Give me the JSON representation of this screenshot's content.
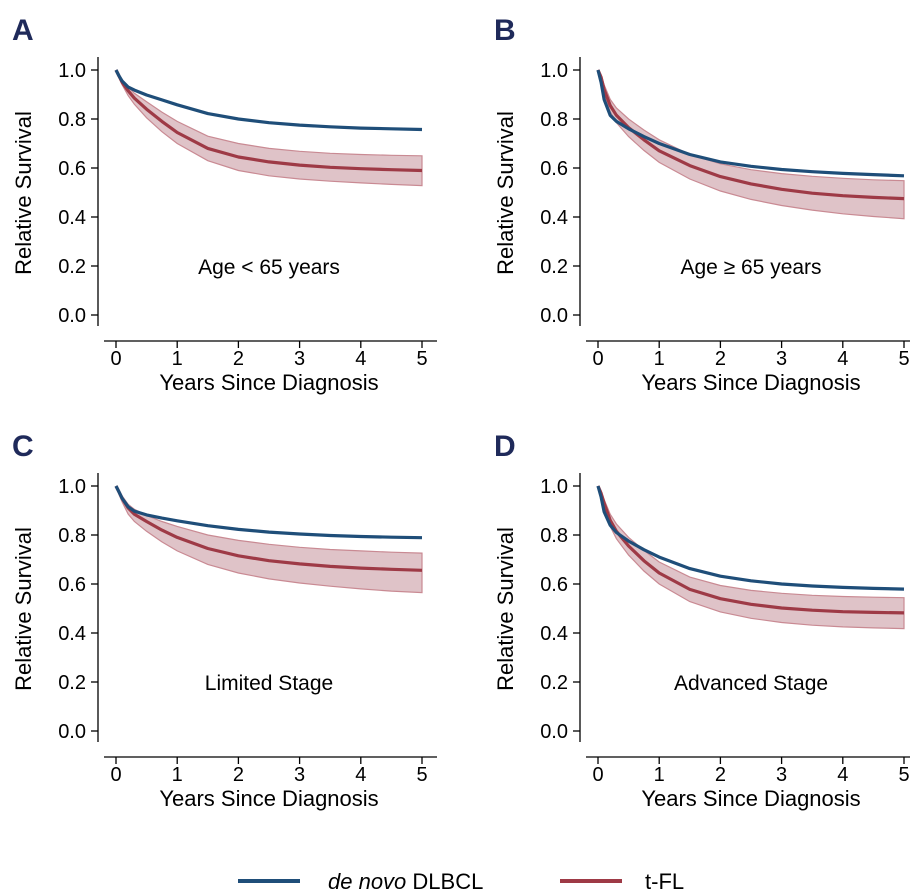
{
  "colors": {
    "denovo": "#1f4e79",
    "tfl": "#9e3a46",
    "band_fill": "#dfc3c8",
    "band_stroke": "#c98a93",
    "panel_label": "#1f2a5a"
  },
  "legend": {
    "denovo_italic": "de novo",
    "denovo_rest": " DLBCL",
    "tfl": "t-FL"
  },
  "chart_data": [
    {
      "type": "line",
      "panel": "A",
      "annotation": "Age < 65 years",
      "xlabel": "Years Since Diagnosis",
      "ylabel": "Relative Survival",
      "xlim": [
        0,
        5
      ],
      "ylim": [
        0,
        1
      ],
      "xticks": [
        "0",
        "1",
        "2",
        "3",
        "4",
        "5"
      ],
      "yticks": [
        "0.0",
        "0.2",
        "0.4",
        "0.6",
        "0.8",
        "1.0"
      ],
      "x": [
        0,
        0.05,
        0.1,
        0.2,
        0.3,
        0.5,
        0.75,
        1,
        1.5,
        2,
        2.5,
        3,
        3.5,
        4,
        4.5,
        5
      ],
      "series": [
        {
          "name": "de novo DLBCL",
          "values": [
            1.0,
            0.975,
            0.955,
            0.93,
            0.918,
            0.898,
            0.878,
            0.858,
            0.822,
            0.8,
            0.785,
            0.775,
            0.768,
            0.763,
            0.76,
            0.757
          ]
        },
        {
          "name": "t-FL",
          "values": [
            1.0,
            0.975,
            0.95,
            0.915,
            0.885,
            0.84,
            0.79,
            0.745,
            0.68,
            0.645,
            0.625,
            0.612,
            0.603,
            0.597,
            0.593,
            0.59
          ],
          "lower": [
            1.0,
            0.97,
            0.94,
            0.895,
            0.86,
            0.805,
            0.748,
            0.7,
            0.63,
            0.59,
            0.568,
            0.555,
            0.546,
            0.539,
            0.533,
            0.528
          ],
          "upper": [
            1.0,
            0.98,
            0.96,
            0.93,
            0.905,
            0.87,
            0.828,
            0.79,
            0.73,
            0.7,
            0.68,
            0.668,
            0.66,
            0.655,
            0.652,
            0.65
          ]
        }
      ]
    },
    {
      "type": "line",
      "panel": "B",
      "annotation": "Age ≥ 65 years",
      "xlabel": "Years Since Diagnosis",
      "ylabel": "Relative Survival",
      "xlim": [
        0,
        5
      ],
      "ylim": [
        0,
        1
      ],
      "xticks": [
        "0",
        "1",
        "2",
        "3",
        "4",
        "5"
      ],
      "yticks": [
        "0.0",
        "0.2",
        "0.4",
        "0.6",
        "0.8",
        "1.0"
      ],
      "x": [
        0,
        0.05,
        0.1,
        0.2,
        0.3,
        0.5,
        0.75,
        1,
        1.5,
        2,
        2.5,
        3,
        3.5,
        4,
        4.5,
        5
      ],
      "series": [
        {
          "name": "de novo DLBCL",
          "values": [
            1.0,
            0.95,
            0.88,
            0.815,
            0.79,
            0.76,
            0.728,
            0.7,
            0.655,
            0.625,
            0.607,
            0.594,
            0.585,
            0.578,
            0.573,
            0.568
          ]
        },
        {
          "name": "t-FL",
          "values": [
            1.0,
            0.97,
            0.92,
            0.855,
            0.815,
            0.765,
            0.715,
            0.67,
            0.61,
            0.565,
            0.535,
            0.513,
            0.497,
            0.487,
            0.48,
            0.475
          ],
          "lower": [
            1.0,
            0.96,
            0.9,
            0.83,
            0.785,
            0.728,
            0.672,
            0.623,
            0.555,
            0.506,
            0.472,
            0.447,
            0.428,
            0.413,
            0.402,
            0.393
          ],
          "upper": [
            1.0,
            0.98,
            0.94,
            0.88,
            0.845,
            0.8,
            0.755,
            0.715,
            0.655,
            0.617,
            0.593,
            0.577,
            0.566,
            0.558,
            0.552,
            0.548
          ]
        }
      ]
    },
    {
      "type": "line",
      "panel": "C",
      "annotation": "Limited Stage",
      "xlabel": "Years Since Diagnosis",
      "ylabel": "Relative Survival",
      "xlim": [
        0,
        5
      ],
      "ylim": [
        0,
        1
      ],
      "xticks": [
        "0",
        "1",
        "2",
        "3",
        "4",
        "5"
      ],
      "yticks": [
        "0.0",
        "0.2",
        "0.4",
        "0.6",
        "0.8",
        "1.0"
      ],
      "x": [
        0,
        0.05,
        0.1,
        0.2,
        0.3,
        0.5,
        0.75,
        1,
        1.5,
        2,
        2.5,
        3,
        3.5,
        4,
        4.5,
        5
      ],
      "series": [
        {
          "name": "de novo DLBCL",
          "values": [
            1.0,
            0.975,
            0.95,
            0.915,
            0.897,
            0.882,
            0.869,
            0.858,
            0.838,
            0.823,
            0.812,
            0.804,
            0.798,
            0.794,
            0.791,
            0.789
          ]
        },
        {
          "name": "t-FL",
          "values": [
            1.0,
            0.975,
            0.95,
            0.91,
            0.885,
            0.855,
            0.82,
            0.79,
            0.745,
            0.715,
            0.695,
            0.682,
            0.672,
            0.665,
            0.66,
            0.656
          ],
          "lower": [
            1.0,
            0.965,
            0.935,
            0.885,
            0.855,
            0.815,
            0.772,
            0.735,
            0.68,
            0.645,
            0.621,
            0.604,
            0.591,
            0.58,
            0.571,
            0.565
          ],
          "upper": [
            1.0,
            0.98,
            0.96,
            0.925,
            0.905,
            0.88,
            0.855,
            0.835,
            0.8,
            0.778,
            0.762,
            0.75,
            0.741,
            0.735,
            0.73,
            0.726
          ]
        }
      ]
    },
    {
      "type": "line",
      "panel": "D",
      "annotation": "Advanced Stage",
      "xlabel": "Years Since Diagnosis",
      "ylabel": "Relative Survival",
      "xlim": [
        0,
        5
      ],
      "ylim": [
        0,
        1
      ],
      "xticks": [
        "0",
        "1",
        "2",
        "3",
        "4",
        "5"
      ],
      "yticks": [
        "0.0",
        "0.2",
        "0.4",
        "0.6",
        "0.8",
        "1.0"
      ],
      "x": [
        0,
        0.05,
        0.1,
        0.2,
        0.3,
        0.5,
        0.75,
        1,
        1.5,
        2,
        2.5,
        3,
        3.5,
        4,
        4.5,
        5
      ],
      "series": [
        {
          "name": "de novo DLBCL",
          "values": [
            1.0,
            0.955,
            0.895,
            0.84,
            0.81,
            0.775,
            0.74,
            0.71,
            0.663,
            0.632,
            0.613,
            0.6,
            0.592,
            0.586,
            0.582,
            0.579
          ]
        },
        {
          "name": "t-FL",
          "values": [
            1.0,
            0.97,
            0.93,
            0.86,
            0.815,
            0.755,
            0.695,
            0.645,
            0.578,
            0.54,
            0.517,
            0.502,
            0.493,
            0.487,
            0.484,
            0.482
          ],
          "lower": [
            1.0,
            0.96,
            0.91,
            0.835,
            0.785,
            0.718,
            0.653,
            0.6,
            0.528,
            0.486,
            0.46,
            0.443,
            0.432,
            0.425,
            0.421,
            0.418
          ],
          "upper": [
            1.0,
            0.98,
            0.945,
            0.885,
            0.845,
            0.79,
            0.737,
            0.69,
            0.628,
            0.594,
            0.574,
            0.562,
            0.554,
            0.549,
            0.546,
            0.544
          ]
        }
      ]
    }
  ]
}
